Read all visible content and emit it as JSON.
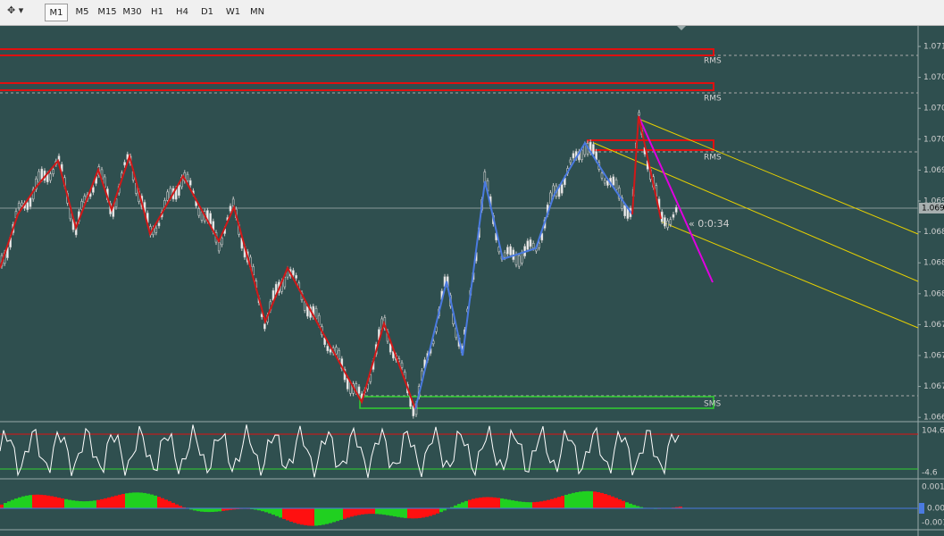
{
  "toolbar": {
    "timeframes": [
      "M1",
      "M5",
      "M15",
      "M30",
      "H1",
      "H4",
      "D1",
      "W1",
      "MN"
    ]
  },
  "main_panel": {
    "price_labels": [
      "1.071",
      "1.070",
      "1.070",
      "1.070",
      "1.069",
      "1.069",
      "1.068",
      "1.068",
      "1.068",
      "1.067",
      "1.067",
      "1.067",
      "1.066"
    ],
    "current_price": "1.069",
    "levels": [
      "RMS",
      "RMS",
      "RMS",
      "SMS"
    ],
    "timer": "« 0:0:34"
  },
  "oscillator_panel": {
    "labels": [
      "104.6",
      "-4.6"
    ]
  },
  "histogram_panel": {
    "labels": [
      "0.001",
      "0.00",
      "-0.001"
    ]
  }
}
